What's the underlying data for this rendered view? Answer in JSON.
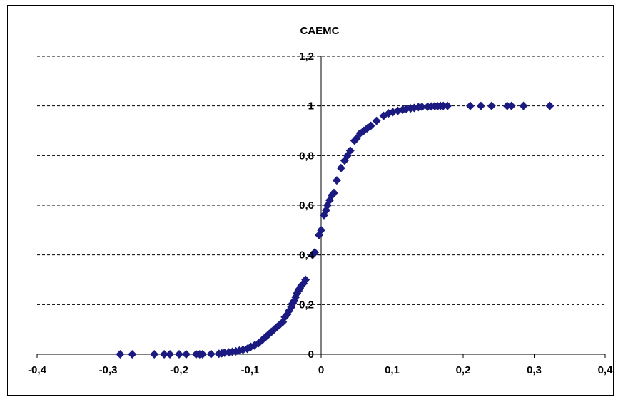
{
  "chart_data": {
    "type": "scatter",
    "title": "CAEMC",
    "xlabel": "",
    "ylabel": "",
    "xlim": [
      -0.4,
      0.4
    ],
    "ylim": [
      0,
      1.2
    ],
    "x_ticks": [
      "-0,4",
      "-0,3",
      "-0,2",
      "-0,1",
      "0",
      "0,1",
      "0,2",
      "0,3",
      "0,4"
    ],
    "y_ticks": [
      "0",
      "0,2",
      "0,4",
      "0,6",
      "0,8",
      "1",
      "1,2"
    ],
    "grid": "horizontal dashed",
    "legend": "none",
    "marker": "diamond",
    "marker_color": "#1a1a80",
    "series": [
      {
        "x": [
          -0.283,
          -0.266,
          -0.235,
          -0.221,
          -0.213,
          -0.2,
          -0.19,
          -0.176,
          -0.171,
          -0.167,
          -0.155,
          -0.144,
          -0.14,
          -0.136,
          -0.13,
          -0.125,
          -0.12,
          -0.115,
          -0.11,
          -0.104,
          -0.099,
          -0.094,
          -0.088,
          -0.082,
          -0.078,
          -0.074,
          -0.07,
          -0.066,
          -0.062,
          -0.058,
          -0.054,
          -0.051,
          -0.048,
          -0.045,
          -0.042,
          -0.04,
          -0.038,
          -0.036,
          -0.034,
          -0.032,
          -0.03,
          -0.028,
          -0.025,
          -0.022,
          -0.012,
          -0.009,
          -0.003,
          0.0,
          0.004,
          0.007,
          0.009,
          0.012,
          0.015,
          0.018,
          0.022,
          0.028,
          0.033,
          0.037,
          0.041,
          0.047,
          0.05,
          0.055,
          0.06,
          0.065,
          0.07,
          0.078,
          0.088,
          0.095,
          0.101,
          0.108,
          0.115,
          0.12,
          0.126,
          0.131,
          0.137,
          0.142,
          0.15,
          0.155,
          0.16,
          0.164,
          0.168,
          0.172,
          0.178,
          0.21,
          0.225,
          0.24,
          0.262,
          0.268,
          0.285,
          0.322
        ],
        "y": [
          0.0,
          0.0,
          0.0,
          0.0,
          0.0,
          0.0,
          0.0,
          0.0,
          0.0,
          0.0,
          0.001,
          0.002,
          0.004,
          0.006,
          0.008,
          0.01,
          0.012,
          0.015,
          0.018,
          0.022,
          0.03,
          0.035,
          0.045,
          0.06,
          0.07,
          0.08,
          0.09,
          0.1,
          0.11,
          0.12,
          0.13,
          0.15,
          0.16,
          0.175,
          0.19,
          0.205,
          0.215,
          0.23,
          0.245,
          0.255,
          0.265,
          0.275,
          0.285,
          0.3,
          0.4,
          0.41,
          0.48,
          0.5,
          0.56,
          0.58,
          0.6,
          0.62,
          0.64,
          0.65,
          0.7,
          0.75,
          0.78,
          0.8,
          0.82,
          0.86,
          0.87,
          0.89,
          0.9,
          0.91,
          0.92,
          0.94,
          0.96,
          0.97,
          0.975,
          0.98,
          0.985,
          0.988,
          0.99,
          0.992,
          0.995,
          0.996,
          0.997,
          0.998,
          0.999,
          0.999,
          1.0,
          1.0,
          1.0,
          1.0,
          1.0,
          1.0,
          1.0,
          1.0,
          1.0,
          1.0
        ]
      }
    ]
  }
}
